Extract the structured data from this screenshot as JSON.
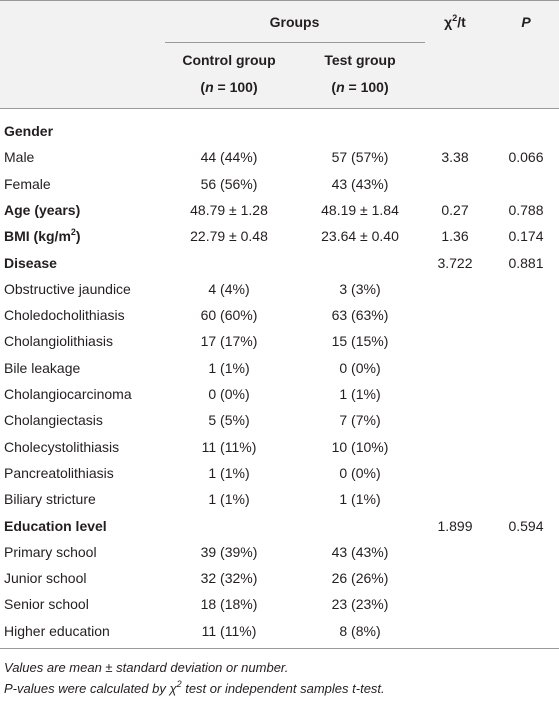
{
  "table": {
    "header": {
      "groups": "Groups",
      "stat": {
        "before": "χ",
        "sup": "2",
        "after": "/t"
      },
      "p": "P",
      "columns": [
        {
          "name": "Control group",
          "n_label": [
            "(",
            "n",
            " = 100)"
          ]
        },
        {
          "name": "Test group",
          "n_label": [
            "(",
            "n",
            " = 100)"
          ]
        }
      ]
    },
    "rows": [
      {
        "label": "Gender",
        "bold": true
      },
      {
        "label": "Male",
        "control": "44 (44%)",
        "test": "57 (57%)",
        "stat": "3.38",
        "p": "0.066"
      },
      {
        "label": "Female",
        "control": "56 (56%)",
        "test": "43 (43%)"
      },
      {
        "label": "Age (years)",
        "bold": true,
        "control": "48.79 ± 1.28",
        "test": "48.19 ± 1.84",
        "stat": "0.27",
        "p": "0.788"
      },
      {
        "label": "BMI (kg/m",
        "label_sup": "2",
        "label_after": ")",
        "bold": true,
        "control": "22.79 ± 0.48",
        "test": "23.64 ± 0.40",
        "stat": "1.36",
        "p": "0.174"
      },
      {
        "label": "Disease",
        "bold": true,
        "stat": "3.722",
        "p": "0.881"
      },
      {
        "label": "Obstructive jaundice",
        "control": "4 (4%)",
        "test": "3 (3%)"
      },
      {
        "label": "Choledocholithiasis",
        "control": "60 (60%)",
        "test": "63 (63%)"
      },
      {
        "label": "Cholangiolithiasis",
        "control": "17 (17%)",
        "test": "15 (15%)"
      },
      {
        "label": "Bile leakage",
        "control": "1 (1%)",
        "test": "0 (0%)"
      },
      {
        "label": "Cholangiocarcinoma",
        "control": "0 (0%)",
        "test": "1 (1%)"
      },
      {
        "label": "Cholangiectasis",
        "control": "5 (5%)",
        "test": "7 (7%)"
      },
      {
        "label": "Cholecystolithiasis",
        "control": "11 (11%)",
        "test": "10 (10%)"
      },
      {
        "label": "Pancreatolithiasis",
        "control": "1 (1%)",
        "test": "0 (0%)"
      },
      {
        "label": "Biliary stricture",
        "control": "1 (1%)",
        "test": "1 (1%)"
      },
      {
        "label": "Education level",
        "bold": true,
        "stat": "1.899",
        "p": "0.594"
      },
      {
        "label": "Primary school",
        "control": "39 (39%)",
        "test": "43 (43%)"
      },
      {
        "label": "Junior school",
        "control": "32 (32%)",
        "test": "26 (26%)"
      },
      {
        "label": "Senior school",
        "control": "18 (18%)",
        "test": "23 (23%)"
      },
      {
        "label": "Higher education",
        "control": "11 (11%)",
        "test": "8 (8%)"
      }
    ],
    "footnotes": [
      {
        "before": "Values are mean ± standard deviation or number."
      },
      {
        "before": "P-values were calculated by χ",
        "sup": "2",
        "after": " test or independent samples t-test."
      }
    ]
  }
}
